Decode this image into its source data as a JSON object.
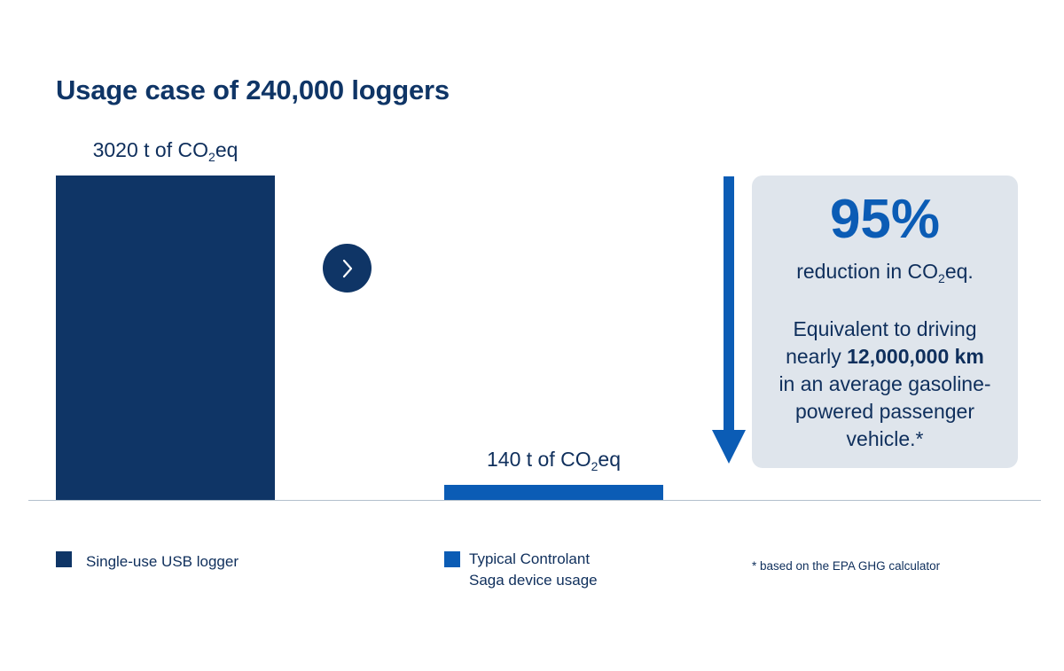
{
  "title": "Usage case of 240,000 loggers",
  "chart_data": {
    "type": "bar",
    "categories": [
      "Single-use USB logger",
      "Typical Controlant Saga device usage"
    ],
    "values": [
      3020,
      140
    ],
    "unit": "t of CO2eq",
    "data_labels": [
      {
        "pre": "3020 t of CO",
        "sub": "2",
        "post": "eq"
      },
      {
        "pre": "140 t of CO",
        "sub": "2",
        "post": "eq"
      }
    ],
    "colors": [
      "#0f3566",
      "#0b5cb5"
    ],
    "ylim": [
      0,
      3020
    ],
    "legend": [
      {
        "line1": "Single-use USB logger",
        "line2": "",
        "color": "#0f3566"
      },
      {
        "line1": "Typical Controlant",
        "line2": "Saga device usage",
        "color": "#0b5cb5"
      }
    ]
  },
  "callout": {
    "percent": "95%",
    "reduction_pre": "reduction in CO",
    "reduction_sub": "2",
    "reduction_post": "eq.",
    "equiv_line1": "Equivalent to driving",
    "equiv_pre_bold": "nearly ",
    "equiv_bold": "12,000,000 km",
    "equiv_rest": "in an average gasoline-powered passenger vehicle.*"
  },
  "footnote": "* based on the EPA GHG calculator",
  "colors": {
    "dark_navy": "#0f3566",
    "blue": "#0b5cb5",
    "callout_bg": "#dfe5ec"
  },
  "icons": {
    "next": "chevron-right-icon",
    "arrow": "arrow-down-icon"
  }
}
